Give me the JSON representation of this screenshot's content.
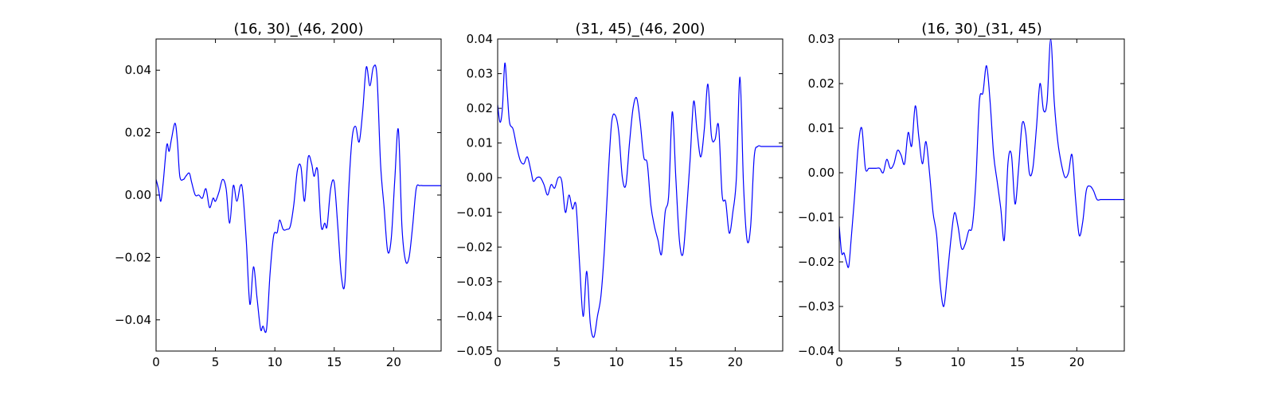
{
  "figure": {
    "background": "#ffffff",
    "line_color": "#0000ff"
  },
  "chart_data": [
    {
      "type": "line",
      "title": "(16, 30)_(46, 200)",
      "xlabel": "",
      "ylabel": "",
      "xlim": [
        0,
        24
      ],
      "ylim": [
        -0.05,
        0.05
      ],
      "xticks": [
        0,
        5,
        10,
        15,
        20
      ],
      "xtick_labels": [
        "0",
        "5",
        "10",
        "15",
        "20"
      ],
      "yticks": [
        -0.04,
        -0.02,
        0.0,
        0.02,
        0.04
      ],
      "ytick_labels": [
        "−0.04",
        "−0.02",
        "0.00",
        "0.02",
        "0.04"
      ],
      "grid": false,
      "series": [
        {
          "color": "#0000ff",
          "x": [
            0,
            0.2,
            0.4,
            0.6,
            0.9,
            1.1,
            1.3,
            1.6,
            1.8,
            2.0,
            2.3,
            2.5,
            2.8,
            3.0,
            3.3,
            3.6,
            3.9,
            4.2,
            4.5,
            4.8,
            5.0,
            5.3,
            5.6,
            5.9,
            6.2,
            6.5,
            6.8,
            7.1,
            7.3,
            7.6,
            7.9,
            8.2,
            8.5,
            8.8,
            9.0,
            9.3,
            9.6,
            9.9,
            10.2,
            10.4,
            10.7,
            11.0,
            11.3,
            11.6,
            11.9,
            12.2,
            12.5,
            12.8,
            13.1,
            13.3,
            13.6,
            13.9,
            14.2,
            14.4,
            14.7,
            15.0,
            15.3,
            15.6,
            15.9,
            16.2,
            16.5,
            16.8,
            17.1,
            17.4,
            17.7,
            18.0,
            18.3,
            18.6,
            18.9,
            19.2,
            19.5,
            19.8,
            20.1,
            20.4,
            20.7,
            21.0,
            21.3,
            21.6,
            21.9,
            22.2,
            22.5,
            22.8,
            23.1,
            23.4,
            23.7,
            24.0
          ],
          "y": [
            0.005,
            0.002,
            -0.002,
            0.004,
            0.016,
            0.014,
            0.018,
            0.023,
            0.017,
            0.006,
            0.005,
            0.006,
            0.007,
            0.004,
            0.0,
            0.0,
            -0.001,
            0.002,
            -0.004,
            -0.001,
            -0.002,
            0.001,
            0.005,
            0.002,
            -0.009,
            0.003,
            -0.002,
            0.003,
            0.001,
            -0.015,
            -0.035,
            -0.023,
            -0.033,
            -0.043,
            -0.042,
            -0.043,
            -0.025,
            -0.013,
            -0.012,
            -0.008,
            -0.011,
            -0.011,
            -0.01,
            -0.003,
            0.008,
            0.009,
            -0.002,
            0.012,
            0.01,
            0.006,
            0.008,
            -0.01,
            -0.009,
            -0.01,
            0.002,
            0.004,
            -0.01,
            -0.026,
            -0.028,
            0.0,
            0.018,
            0.022,
            0.017,
            0.027,
            0.041,
            0.035,
            0.041,
            0.038,
            0.01,
            -0.004,
            -0.018,
            -0.014,
            0.005,
            0.021,
            -0.01,
            -0.021,
            -0.02,
            -0.01,
            0.002,
            0.003,
            0.003,
            0.003,
            0.003,
            0.003,
            0.003,
            0.003
          ]
        }
      ]
    },
    {
      "type": "line",
      "title": "(31, 45)_(46, 200)",
      "xlabel": "",
      "ylabel": "",
      "xlim": [
        0,
        24
      ],
      "ylim": [
        -0.05,
        0.04
      ],
      "xticks": [
        0,
        5,
        10,
        15,
        20
      ],
      "xtick_labels": [
        "0",
        "5",
        "10",
        "15",
        "20"
      ],
      "yticks": [
        -0.05,
        -0.04,
        -0.03,
        -0.02,
        -0.01,
        0.0,
        0.01,
        0.02,
        0.03,
        0.04
      ],
      "ytick_labels": [
        "−0.05",
        "−0.04",
        "−0.03",
        "−0.02",
        "−0.01",
        "0.00",
        "0.01",
        "0.02",
        "0.03",
        "0.04"
      ],
      "grid": false,
      "series": [
        {
          "color": "#0000ff",
          "x": [
            0,
            0.2,
            0.4,
            0.6,
            0.8,
            1.0,
            1.3,
            1.6,
            1.9,
            2.2,
            2.5,
            2.8,
            3.0,
            3.3,
            3.6,
            3.9,
            4.2,
            4.5,
            4.8,
            5.1,
            5.4,
            5.7,
            6.0,
            6.3,
            6.6,
            6.9,
            7.2,
            7.5,
            7.8,
            8.1,
            8.4,
            8.7,
            9.0,
            9.3,
            9.6,
            9.9,
            10.2,
            10.5,
            10.8,
            11.1,
            11.4,
            11.7,
            12.0,
            12.3,
            12.6,
            12.9,
            13.2,
            13.5,
            13.8,
            14.1,
            14.4,
            14.7,
            15.0,
            15.3,
            15.6,
            15.9,
            16.2,
            16.5,
            16.8,
            17.1,
            17.4,
            17.7,
            18.0,
            18.3,
            18.6,
            18.9,
            19.2,
            19.5,
            19.8,
            20.1,
            20.4,
            20.7,
            21.0,
            21.3,
            21.6,
            21.9,
            22.2,
            22.5,
            22.8,
            23.1,
            23.4,
            23.7,
            24.0
          ],
          "y": [
            0.021,
            0.016,
            0.02,
            0.033,
            0.025,
            0.016,
            0.014,
            0.009,
            0.005,
            0.004,
            0.006,
            0.002,
            -0.001,
            0.0,
            0.0,
            -0.002,
            -0.005,
            -0.002,
            -0.003,
            0.0,
            -0.001,
            -0.01,
            -0.005,
            -0.009,
            -0.008,
            -0.025,
            -0.04,
            -0.027,
            -0.042,
            -0.046,
            -0.04,
            -0.034,
            -0.02,
            0.0,
            0.016,
            0.018,
            0.013,
            0.0,
            -0.002,
            0.01,
            0.02,
            0.023,
            0.016,
            0.006,
            0.004,
            -0.008,
            -0.014,
            -0.018,
            -0.022,
            -0.01,
            -0.005,
            0.019,
            0.0,
            -0.018,
            -0.022,
            -0.01,
            0.005,
            0.022,
            0.013,
            0.006,
            0.014,
            0.027,
            0.012,
            0.011,
            0.015,
            -0.005,
            -0.007,
            -0.016,
            -0.01,
            0.0,
            0.029,
            -0.002,
            -0.018,
            -0.014,
            0.006,
            0.009,
            0.009,
            0.009,
            0.009,
            0.009,
            0.009,
            0.009,
            0.009
          ]
        }
      ]
    },
    {
      "type": "line",
      "title": "(16, 30)_(31, 45)",
      "xlabel": "",
      "ylabel": "",
      "xlim": [
        0,
        24
      ],
      "ylim": [
        -0.04,
        0.03
      ],
      "xticks": [
        0,
        5,
        10,
        15,
        20
      ],
      "xtick_labels": [
        "0",
        "5",
        "10",
        "15",
        "20"
      ],
      "yticks": [
        -0.04,
        -0.03,
        -0.02,
        -0.01,
        0.0,
        0.01,
        0.02,
        0.03
      ],
      "ytick_labels": [
        "−0.04",
        "−0.03",
        "−0.02",
        "−0.01",
        "0.00",
        "0.01",
        "0.02",
        "0.03"
      ],
      "grid": false,
      "series": [
        {
          "color": "#0000ff",
          "x": [
            0,
            0.2,
            0.4,
            0.6,
            0.8,
            1.0,
            1.3,
            1.6,
            1.9,
            2.2,
            2.5,
            2.8,
            3.1,
            3.4,
            3.7,
            4.0,
            4.3,
            4.6,
            4.9,
            5.2,
            5.5,
            5.8,
            6.1,
            6.4,
            6.7,
            7.0,
            7.3,
            7.6,
            7.9,
            8.2,
            8.5,
            8.8,
            9.1,
            9.4,
            9.7,
            10.0,
            10.3,
            10.6,
            10.9,
            11.2,
            11.5,
            11.8,
            12.1,
            12.4,
            12.7,
            13.0,
            13.3,
            13.6,
            13.9,
            14.2,
            14.5,
            14.8,
            15.1,
            15.4,
            15.7,
            16.0,
            16.3,
            16.6,
            16.9,
            17.2,
            17.5,
            17.8,
            18.1,
            18.4,
            18.7,
            19.0,
            19.3,
            19.6,
            19.9,
            20.2,
            20.5,
            20.8,
            21.1,
            21.4,
            21.7,
            22.0,
            22.3,
            22.6,
            22.9,
            23.2,
            23.5,
            23.8,
            24.0
          ],
          "y": [
            -0.012,
            -0.018,
            -0.018,
            -0.02,
            -0.021,
            -0.015,
            -0.005,
            0.006,
            0.01,
            0.001,
            0.001,
            0.001,
            0.001,
            0.001,
            0.0,
            0.003,
            0.001,
            0.002,
            0.005,
            0.004,
            0.002,
            0.009,
            0.006,
            0.015,
            0.008,
            0.002,
            0.007,
            0.0,
            -0.009,
            -0.014,
            -0.025,
            -0.03,
            -0.023,
            -0.015,
            -0.009,
            -0.012,
            -0.017,
            -0.016,
            -0.013,
            -0.012,
            -0.002,
            0.016,
            0.018,
            0.024,
            0.016,
            0.004,
            -0.002,
            -0.008,
            -0.015,
            0.002,
            0.004,
            -0.007,
            0.001,
            0.011,
            0.009,
            0.0,
            0.001,
            0.01,
            0.02,
            0.014,
            0.016,
            0.03,
            0.016,
            0.007,
            0.002,
            -0.001,
            0.0,
            0.004,
            -0.006,
            -0.014,
            -0.011,
            -0.004,
            -0.003,
            -0.004,
            -0.006,
            -0.006,
            -0.006,
            -0.006,
            -0.006,
            -0.006,
            -0.006,
            -0.006,
            -0.006
          ]
        }
      ]
    }
  ]
}
